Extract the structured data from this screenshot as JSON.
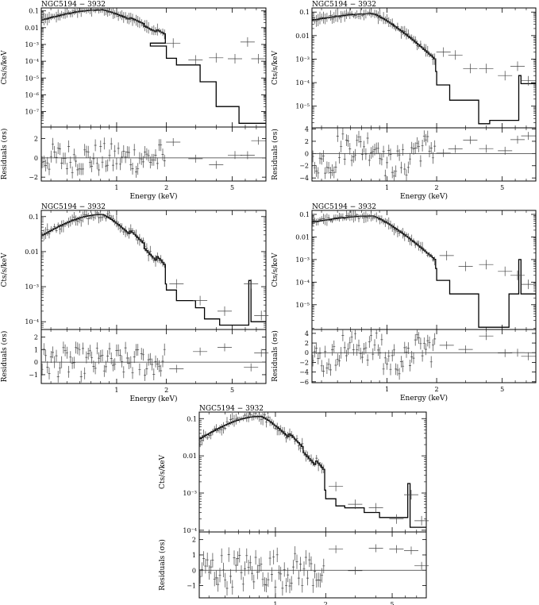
{
  "chart_data": [
    {
      "type": "line",
      "title": "NGC5194 − 3932",
      "xlabel": "Energy (keV)",
      "ylabel": "Cts/s/keV",
      "res_label": "Residuals (σs)",
      "x_scale": "log",
      "xlim": [
        0.35,
        8.0
      ],
      "x_ticks": [
        "1",
        "2",
        "5"
      ],
      "x_tick_values": [
        1,
        2,
        5
      ],
      "y_scale": "log",
      "ylim": [
        1.2e-08,
        0.15
      ],
      "y_ticks": [
        "0.1",
        "0.01",
        "10⁻³",
        "10⁻⁴",
        "10⁻⁵",
        "10⁻⁶",
        "10⁻⁷"
      ],
      "y_tick_values": [
        0.1,
        0.01,
        0.001,
        0.0001,
        1e-05,
        1e-06,
        1e-07
      ],
      "res_ylim": [
        -2.4,
        3.2
      ],
      "res_ticks": [
        "−2",
        "0",
        "2"
      ],
      "res_tick_values": [
        -2,
        0,
        2
      ],
      "model_shape": "soft_line",
      "model_steps": [
        [
          1.6,
          0.0012
        ],
        [
          2.0,
          0.0008
        ],
        [
          2.3,
          0.00015
        ],
        [
          2.7,
          6e-05
        ],
        [
          3.2,
          6e-05
        ],
        [
          4.0,
          6e-06
        ],
        [
          5.5,
          2e-07
        ],
        [
          6.2,
          2e-08
        ],
        [
          8.0,
          2e-08
        ]
      ],
      "data_extra": [
        [
          2.2,
          0.0012
        ],
        [
          3.0,
          0.00012
        ],
        [
          4.0,
          0.00016
        ],
        [
          5.2,
          0.00014
        ],
        [
          6.2,
          0.0014
        ],
        [
          7.2,
          0.00014
        ]
      ]
    },
    {
      "type": "line",
      "title": "NGC5194 − 3932",
      "xlabel": "Energy (keV)",
      "ylabel": "Cts/s/keV",
      "res_label": "Residuals (σs)",
      "x_scale": "log",
      "xlim": [
        0.35,
        8.0
      ],
      "x_ticks": [
        "1",
        "2",
        "5"
      ],
      "x_tick_values": [
        1,
        2,
        5
      ],
      "y_scale": "log",
      "ylim": [
        1.2e-06,
        0.15
      ],
      "y_ticks": [
        "0.1",
        "0.01",
        "10⁻³",
        "10⁻⁴",
        "10⁻⁵"
      ],
      "y_tick_values": [
        0.1,
        0.01,
        0.001,
        0.0001,
        1e-05
      ],
      "res_ylim": [
        -4.5,
        4.2
      ],
      "res_ticks": [
        "4",
        "2",
        "0",
        "−2",
        "−4"
      ],
      "res_tick_values": [
        4,
        2,
        0,
        -2,
        -4
      ],
      "model_shape": "hard_line",
      "model_steps": [
        [
          2.0,
          0.0003
        ],
        [
          2.4,
          8e-05
        ],
        [
          2.8,
          1.8e-05
        ],
        [
          3.6,
          1.8e-05
        ],
        [
          4.2,
          1.8e-06
        ],
        [
          5.5,
          2.5e-06
        ],
        [
          6.3,
          2.5e-06
        ],
        [
          6.5,
          0.0002
        ],
        [
          6.7,
          9e-05
        ],
        [
          8.0,
          9e-05
        ]
      ],
      "data_extra": [
        [
          2.2,
          0.002
        ],
        [
          2.6,
          0.0015
        ],
        [
          3.2,
          0.0004
        ],
        [
          4.0,
          0.0004
        ],
        [
          5.2,
          0.0002
        ],
        [
          6.2,
          0.0005
        ],
        [
          7.2,
          0.00012
        ]
      ]
    },
    {
      "type": "line",
      "title": "NGC5194 − 3932",
      "xlabel": "Energy (keV)",
      "ylabel": "Cts/s/keV",
      "res_label": "Residuals (σs)",
      "x_scale": "log",
      "xlim": [
        0.35,
        8.0
      ],
      "x_ticks": [
        "1",
        "2",
        "5"
      ],
      "x_tick_values": [
        1,
        2,
        5
      ],
      "y_scale": "log",
      "ylim": [
        6e-05,
        0.15
      ],
      "y_ticks": [
        "0.1",
        "0.01",
        "10⁻³",
        "10⁻⁴"
      ],
      "y_tick_values": [
        0.1,
        0.01,
        0.001,
        0.0001
      ],
      "res_ylim": [
        -1.7,
        2.6
      ],
      "res_ticks": [
        "2",
        "1",
        "0",
        "−1"
      ],
      "res_tick_values": [
        2,
        1,
        0,
        -1
      ],
      "model_shape": "soft_line",
      "model_steps": [
        [
          2.0,
          0.0012
        ],
        [
          2.3,
          0.0008
        ],
        [
          2.6,
          0.0004
        ],
        [
          3.0,
          0.0004
        ],
        [
          3.4,
          0.00025
        ],
        [
          4.2,
          0.00012
        ],
        [
          5.5,
          8e-05
        ],
        [
          6.3,
          8e-05
        ],
        [
          6.5,
          0.0015
        ],
        [
          6.7,
          0.0001
        ],
        [
          8.0,
          0.0001
        ]
      ],
      "data_extra": [
        [
          2.3,
          0.0012
        ],
        [
          3.2,
          0.0004
        ],
        [
          4.5,
          0.0002
        ],
        [
          6.5,
          0.0012
        ],
        [
          7.5,
          0.00015
        ]
      ]
    },
    {
      "type": "line",
      "title": "NGC5194 − 3932",
      "xlabel": "Energy (keV)",
      "ylabel": "Cts/s/keV",
      "res_label": "Residuals (σs)",
      "x_scale": "log",
      "xlim": [
        0.35,
        8.0
      ],
      "x_ticks": [
        "1",
        "2",
        "5"
      ],
      "x_tick_values": [
        1,
        2,
        5
      ],
      "y_scale": "log",
      "ylim": [
        8e-07,
        0.15
      ],
      "y_ticks": [
        "0.1",
        "0.01",
        "10⁻³",
        "10⁻⁴",
        "10⁻⁵"
      ],
      "y_tick_values": [
        0.1,
        0.01,
        0.001,
        0.0001,
        1e-05
      ],
      "res_ylim": [
        -6.2,
        4.8
      ],
      "res_ticks": [
        "4",
        "2",
        "0",
        "−2",
        "−4",
        "−6"
      ],
      "res_tick_values": [
        4,
        2,
        0,
        -2,
        -4,
        -6
      ],
      "model_shape": "hard_line",
      "model_steps": [
        [
          2.0,
          0.0004
        ],
        [
          2.4,
          0.00012
        ],
        [
          2.8,
          3e-05
        ],
        [
          3.6,
          3e-05
        ],
        [
          4.2,
          1e-06
        ],
        [
          5.5,
          1e-06
        ],
        [
          6.3,
          3e-05
        ],
        [
          6.5,
          0.001
        ],
        [
          6.7,
          3e-05
        ],
        [
          8.0,
          3e-05
        ]
      ],
      "data_extra": [
        [
          2.3,
          0.0015
        ],
        [
          3.0,
          0.0005
        ],
        [
          4.0,
          0.0006
        ],
        [
          5.2,
          0.0003
        ],
        [
          6.2,
          0.0002
        ],
        [
          7.2,
          8e-05
        ]
      ]
    },
    {
      "type": "line",
      "title": "NGC5194 − 3932",
      "xlabel": "Energy (keV)",
      "ylabel": "Cts/s/keV",
      "res_label": "Residuals (σs)",
      "x_scale": "log",
      "xlim": [
        0.35,
        8.0
      ],
      "x_ticks": [
        "1",
        "2",
        "5"
      ],
      "x_tick_values": [
        1,
        2,
        5
      ],
      "y_scale": "log",
      "ylim": [
        9e-05,
        0.15
      ],
      "y_ticks": [
        "0.1",
        "0.01",
        "10⁻³",
        "10⁻⁴"
      ],
      "y_tick_values": [
        0.1,
        0.01,
        0.001,
        0.0001
      ],
      "res_ylim": [
        -1.8,
        2.5
      ],
      "res_ticks": [
        "2",
        "1",
        "0",
        "−1"
      ],
      "res_tick_values": [
        2,
        1,
        0,
        -1
      ],
      "model_shape": "soft_line",
      "model_steps": [
        [
          2.0,
          0.0012
        ],
        [
          2.3,
          0.0007
        ],
        [
          2.6,
          0.00045
        ],
        [
          3.4,
          0.0004
        ],
        [
          4.2,
          0.0003
        ],
        [
          5.5,
          0.00022
        ],
        [
          6.2,
          0.00022
        ],
        [
          6.4,
          0.0018
        ],
        [
          6.6,
          0.00012
        ],
        [
          8.0,
          0.00012
        ]
      ],
      "data_extra": [
        [
          2.3,
          0.0015
        ],
        [
          3.0,
          0.0005
        ],
        [
          4.0,
          0.0004
        ],
        [
          5.3,
          0.0002
        ],
        [
          6.5,
          0.0009
        ],
        [
          7.5,
          0.00018
        ]
      ]
    }
  ]
}
